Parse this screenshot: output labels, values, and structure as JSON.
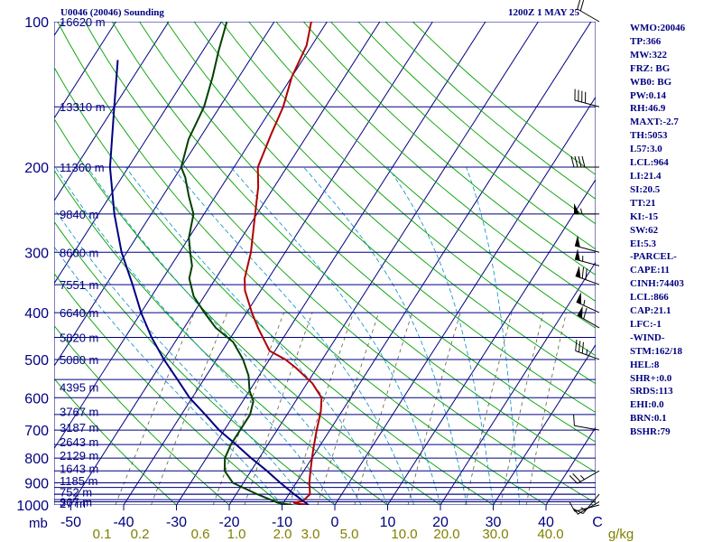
{
  "header": {
    "station": "U0046 (20046) Sounding",
    "time": "1200Z  1 MAY 25"
  },
  "indices": [
    "WMO:20046",
    "TP:366",
    "MW:322",
    "FRZ: BG",
    "WB0: BG",
    "PW:0.14",
    "RH:46.9",
    "MAXT:-2.7",
    "TH:5053",
    "L57:3.0",
    "LCL:964",
    "LI:21.4",
    "SI:20.5",
    "TT:21",
    "KI:-15",
    "SW:62",
    "EI:5.3",
    "-PARCEL-",
    "CAPE:11",
    "CINH:74403",
    "LCL:866",
    "CAP:21.1",
    "LFC:-1",
    "-WIND-",
    "STM:162/18",
    "HEL:8",
    "SHR+:0.0",
    "SRDS:113",
    "EHI:0.0",
    "BRN:0.1",
    "BSHR:79"
  ],
  "chart_data": {
    "type": "line",
    "title": "U0046 (20046) Sounding  1200Z  1 MAY 25",
    "xlabel": "C",
    "ylabel": "mb",
    "xlim": [
      -50,
      45
    ],
    "ylim": [
      1000,
      100
    ],
    "pressure_labels": [
      "100",
      "200",
      "300",
      "400",
      "500",
      "600",
      "700",
      "800",
      "900",
      "1000"
    ],
    "pressure_ticks": [
      100,
      200,
      300,
      400,
      500,
      600,
      700,
      800,
      900,
      1000
    ],
    "temp_ticks": [
      -50,
      -40,
      -30,
      -20,
      -10,
      0,
      10,
      20,
      30,
      40
    ],
    "temp_labels": [
      "-50",
      "-40",
      "-30",
      "-20",
      "-10",
      "0",
      "10",
      "20",
      "30",
      "40"
    ],
    "mixing_ratio_labels": [
      "0.1",
      "0.2",
      "0.6",
      "1.0",
      "2.0",
      "3.0",
      "5.0",
      "10.0",
      "20.0",
      "30.0",
      "40.0"
    ],
    "mixing_ratio_unit": "g/kg",
    "height_levels": [
      {
        "p": 100,
        "label": "16620 m"
      },
      {
        "p": 150,
        "label": "13310 m"
      },
      {
        "p": 200,
        "label": "11360 m"
      },
      {
        "p": 250,
        "label": "9840 m"
      },
      {
        "p": 300,
        "label": "8600 m"
      },
      {
        "p": 350,
        "label": "7551 m"
      },
      {
        "p": 400,
        "label": "6640 m"
      },
      {
        "p": 450,
        "label": "5820 m"
      },
      {
        "p": 500,
        "label": "5080 m"
      },
      {
        "p": 570,
        "label": "4395 m"
      },
      {
        "p": 640,
        "label": "3767 m"
      },
      {
        "p": 690,
        "label": "3187 m"
      },
      {
        "p": 740,
        "label": "2643 m"
      },
      {
        "p": 790,
        "label": "2129 m"
      },
      {
        "p": 840,
        "label": "1643 m"
      },
      {
        "p": 890,
        "label": "1185 m"
      },
      {
        "p": 940,
        "label": "752 m"
      },
      {
        "p": 985,
        "label": "367 m"
      },
      {
        "p": 1000,
        "label": "27 m"
      }
    ],
    "series": [
      {
        "name": "Temperature",
        "color": "#b00000",
        "points": [
          [
            1000,
            -5
          ],
          [
            990,
            -8
          ],
          [
            980,
            -6.5
          ],
          [
            950,
            -6
          ],
          [
            900,
            -7.5
          ],
          [
            860,
            -8.5
          ],
          [
            800,
            -10
          ],
          [
            760,
            -11
          ],
          [
            700,
            -12.5
          ],
          [
            640,
            -14
          ],
          [
            600,
            -15.5
          ],
          [
            560,
            -19
          ],
          [
            520,
            -24
          ],
          [
            500,
            -27
          ],
          [
            480,
            -31
          ],
          [
            430,
            -36
          ],
          [
            400,
            -39
          ],
          [
            360,
            -43
          ],
          [
            340,
            -44.5
          ],
          [
            300,
            -46.5
          ],
          [
            260,
            -49.5
          ],
          [
            220,
            -53
          ],
          [
            200,
            -55.5
          ],
          [
            170,
            -57
          ],
          [
            150,
            -58
          ],
          [
            130,
            -60
          ],
          [
            112,
            -61
          ],
          [
            100,
            -63
          ]
        ]
      },
      {
        "name": "Dewpoint",
        "color": "#004000",
        "points": [
          [
            1000,
            -8
          ],
          [
            990,
            -11
          ],
          [
            950,
            -16
          ],
          [
            900,
            -22
          ],
          [
            850,
            -25
          ],
          [
            800,
            -26.5
          ],
          [
            750,
            -27
          ],
          [
            700,
            -27
          ],
          [
            650,
            -27
          ],
          [
            610,
            -28
          ],
          [
            580,
            -30
          ],
          [
            540,
            -32
          ],
          [
            500,
            -35
          ],
          [
            460,
            -39
          ],
          [
            430,
            -44
          ],
          [
            400,
            -48
          ],
          [
            370,
            -52
          ],
          [
            340,
            -55
          ],
          [
            320,
            -56
          ],
          [
            300,
            -58
          ],
          [
            280,
            -60
          ],
          [
            250,
            -62
          ],
          [
            230,
            -65
          ],
          [
            210,
            -68
          ],
          [
            200,
            -70
          ],
          [
            175,
            -72
          ],
          [
            150,
            -73
          ],
          [
            130,
            -75
          ],
          [
            115,
            -77
          ],
          [
            100,
            -79
          ]
        ]
      },
      {
        "name": "Parcel",
        "color": "#000080",
        "points": [
          [
            1000,
            -5
          ],
          [
            950,
            -9
          ],
          [
            900,
            -13
          ],
          [
            850,
            -17
          ],
          [
            800,
            -21.5
          ],
          [
            750,
            -26
          ],
          [
            700,
            -31
          ],
          [
            650,
            -35.5
          ],
          [
            600,
            -40.5
          ],
          [
            550,
            -45
          ],
          [
            500,
            -50
          ],
          [
            450,
            -55
          ],
          [
            400,
            -60
          ],
          [
            350,
            -65
          ],
          [
            300,
            -71
          ],
          [
            250,
            -77
          ],
          [
            200,
            -83.5
          ],
          [
            150,
            -90
          ],
          [
            120,
            -95
          ]
        ]
      }
    ],
    "wind_barbs": [
      {
        "p": 1000,
        "dir": 255,
        "spd": 10
      },
      {
        "p": 985,
        "dir": 240,
        "spd": 5
      },
      {
        "p": 950,
        "dir": 220,
        "spd": 15
      },
      {
        "p": 850,
        "dir": 240,
        "spd": 25
      },
      {
        "p": 700,
        "dir": 280,
        "spd": 10
      },
      {
        "p": 500,
        "dir": 290,
        "spd": 35
      },
      {
        "p": 430,
        "dir": 300,
        "spd": 60
      },
      {
        "p": 400,
        "dir": 295,
        "spd": 55
      },
      {
        "p": 350,
        "dir": 290,
        "spd": 70
      },
      {
        "p": 320,
        "dir": 285,
        "spd": 55
      },
      {
        "p": 300,
        "dir": 285,
        "spd": 50
      },
      {
        "p": 250,
        "dir": 270,
        "spd": 55
      },
      {
        "p": 200,
        "dir": 270,
        "spd": 40
      },
      {
        "p": 150,
        "dir": 285,
        "spd": 40
      },
      {
        "p": 100,
        "dir": 300,
        "spd": 20
      }
    ]
  },
  "colors": {
    "isobar": "#000080",
    "isotherm": "#000080",
    "dry_adiabat": "#00a000",
    "moist_adiabat": "#0090c0",
    "mixing_ratio": "#606040",
    "axis_text": "#000080",
    "mixing_text": "#808000"
  }
}
